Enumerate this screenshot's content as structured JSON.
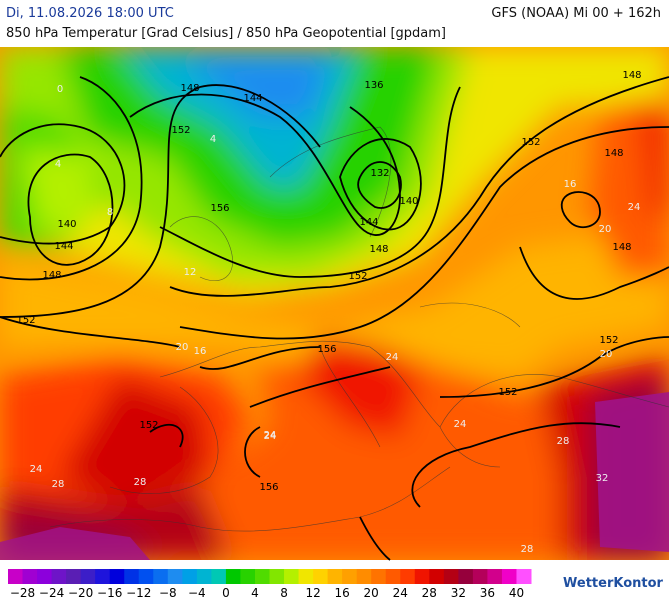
{
  "header": {
    "datetime": "Di, 11.08.2026 18:00 UTC",
    "model": "GFS (NOAA) Mi 00 + 162h",
    "subtitle": "850 hPa Temperatur [Grad Celsius] / 850 hPa Geopotential [gpdam]"
  },
  "map": {
    "contour_labels": [
      "148",
      "144",
      "152",
      "140",
      "144",
      "148",
      "152",
      "136",
      "132",
      "140",
      "144",
      "148",
      "152",
      "156",
      "148",
      "152",
      "148",
      "148",
      "152",
      "152",
      "156",
      "156",
      "152"
    ],
    "isotherm_labels": [
      "0",
      "4",
      "8",
      "12",
      "16",
      "20",
      "24",
      "24",
      "24",
      "28",
      "28",
      "32",
      "24",
      "20",
      "16",
      "4",
      "24",
      "28",
      "24",
      "20",
      "28"
    ]
  },
  "colorbar": {
    "labels": [
      "−28",
      "−24",
      "−20",
      "−16",
      "−12",
      "−8",
      "−4",
      "0",
      "4",
      "8",
      "12",
      "16",
      "20",
      "24",
      "28",
      "32",
      "36",
      "40"
    ],
    "colors": [
      "#c800c8",
      "#a000d2",
      "#8c00dc",
      "#6e14c8",
      "#5a1eb4",
      "#3c1ec8",
      "#1e14dc",
      "#0000dc",
      "#0032e6",
      "#0050f0",
      "#0a6ef0",
      "#1e8cf0",
      "#00a0e6",
      "#00b4d2",
      "#00c8b4",
      "#00c800",
      "#28d200",
      "#50dc00",
      "#82e600",
      "#b4f000",
      "#f0e600",
      "#ffd200",
      "#ffb400",
      "#ffa000",
      "#ff8c00",
      "#ff7300",
      "#ff5a00",
      "#ff3c00",
      "#f01400",
      "#d20000",
      "#b40014",
      "#96003c",
      "#b4005a",
      "#d2008c",
      "#f000c8",
      "#ff50ff"
    ],
    "brand": "WetterKontor"
  }
}
